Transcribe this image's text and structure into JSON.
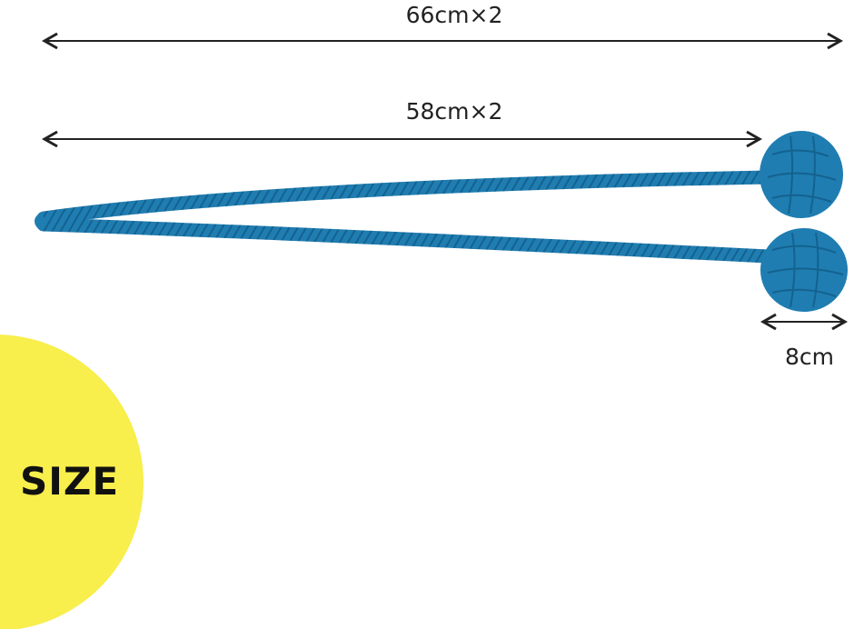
{
  "dimensions": {
    "total_length": "66cm×2",
    "rope_length": "58cm×2",
    "ball_diameter": "8cm"
  },
  "badge": {
    "label": "SIZE"
  },
  "colors": {
    "rope": "#1f7db1",
    "rope_dark": "#14628f",
    "badge": "#f8ee4c",
    "arrow": "#222222"
  }
}
